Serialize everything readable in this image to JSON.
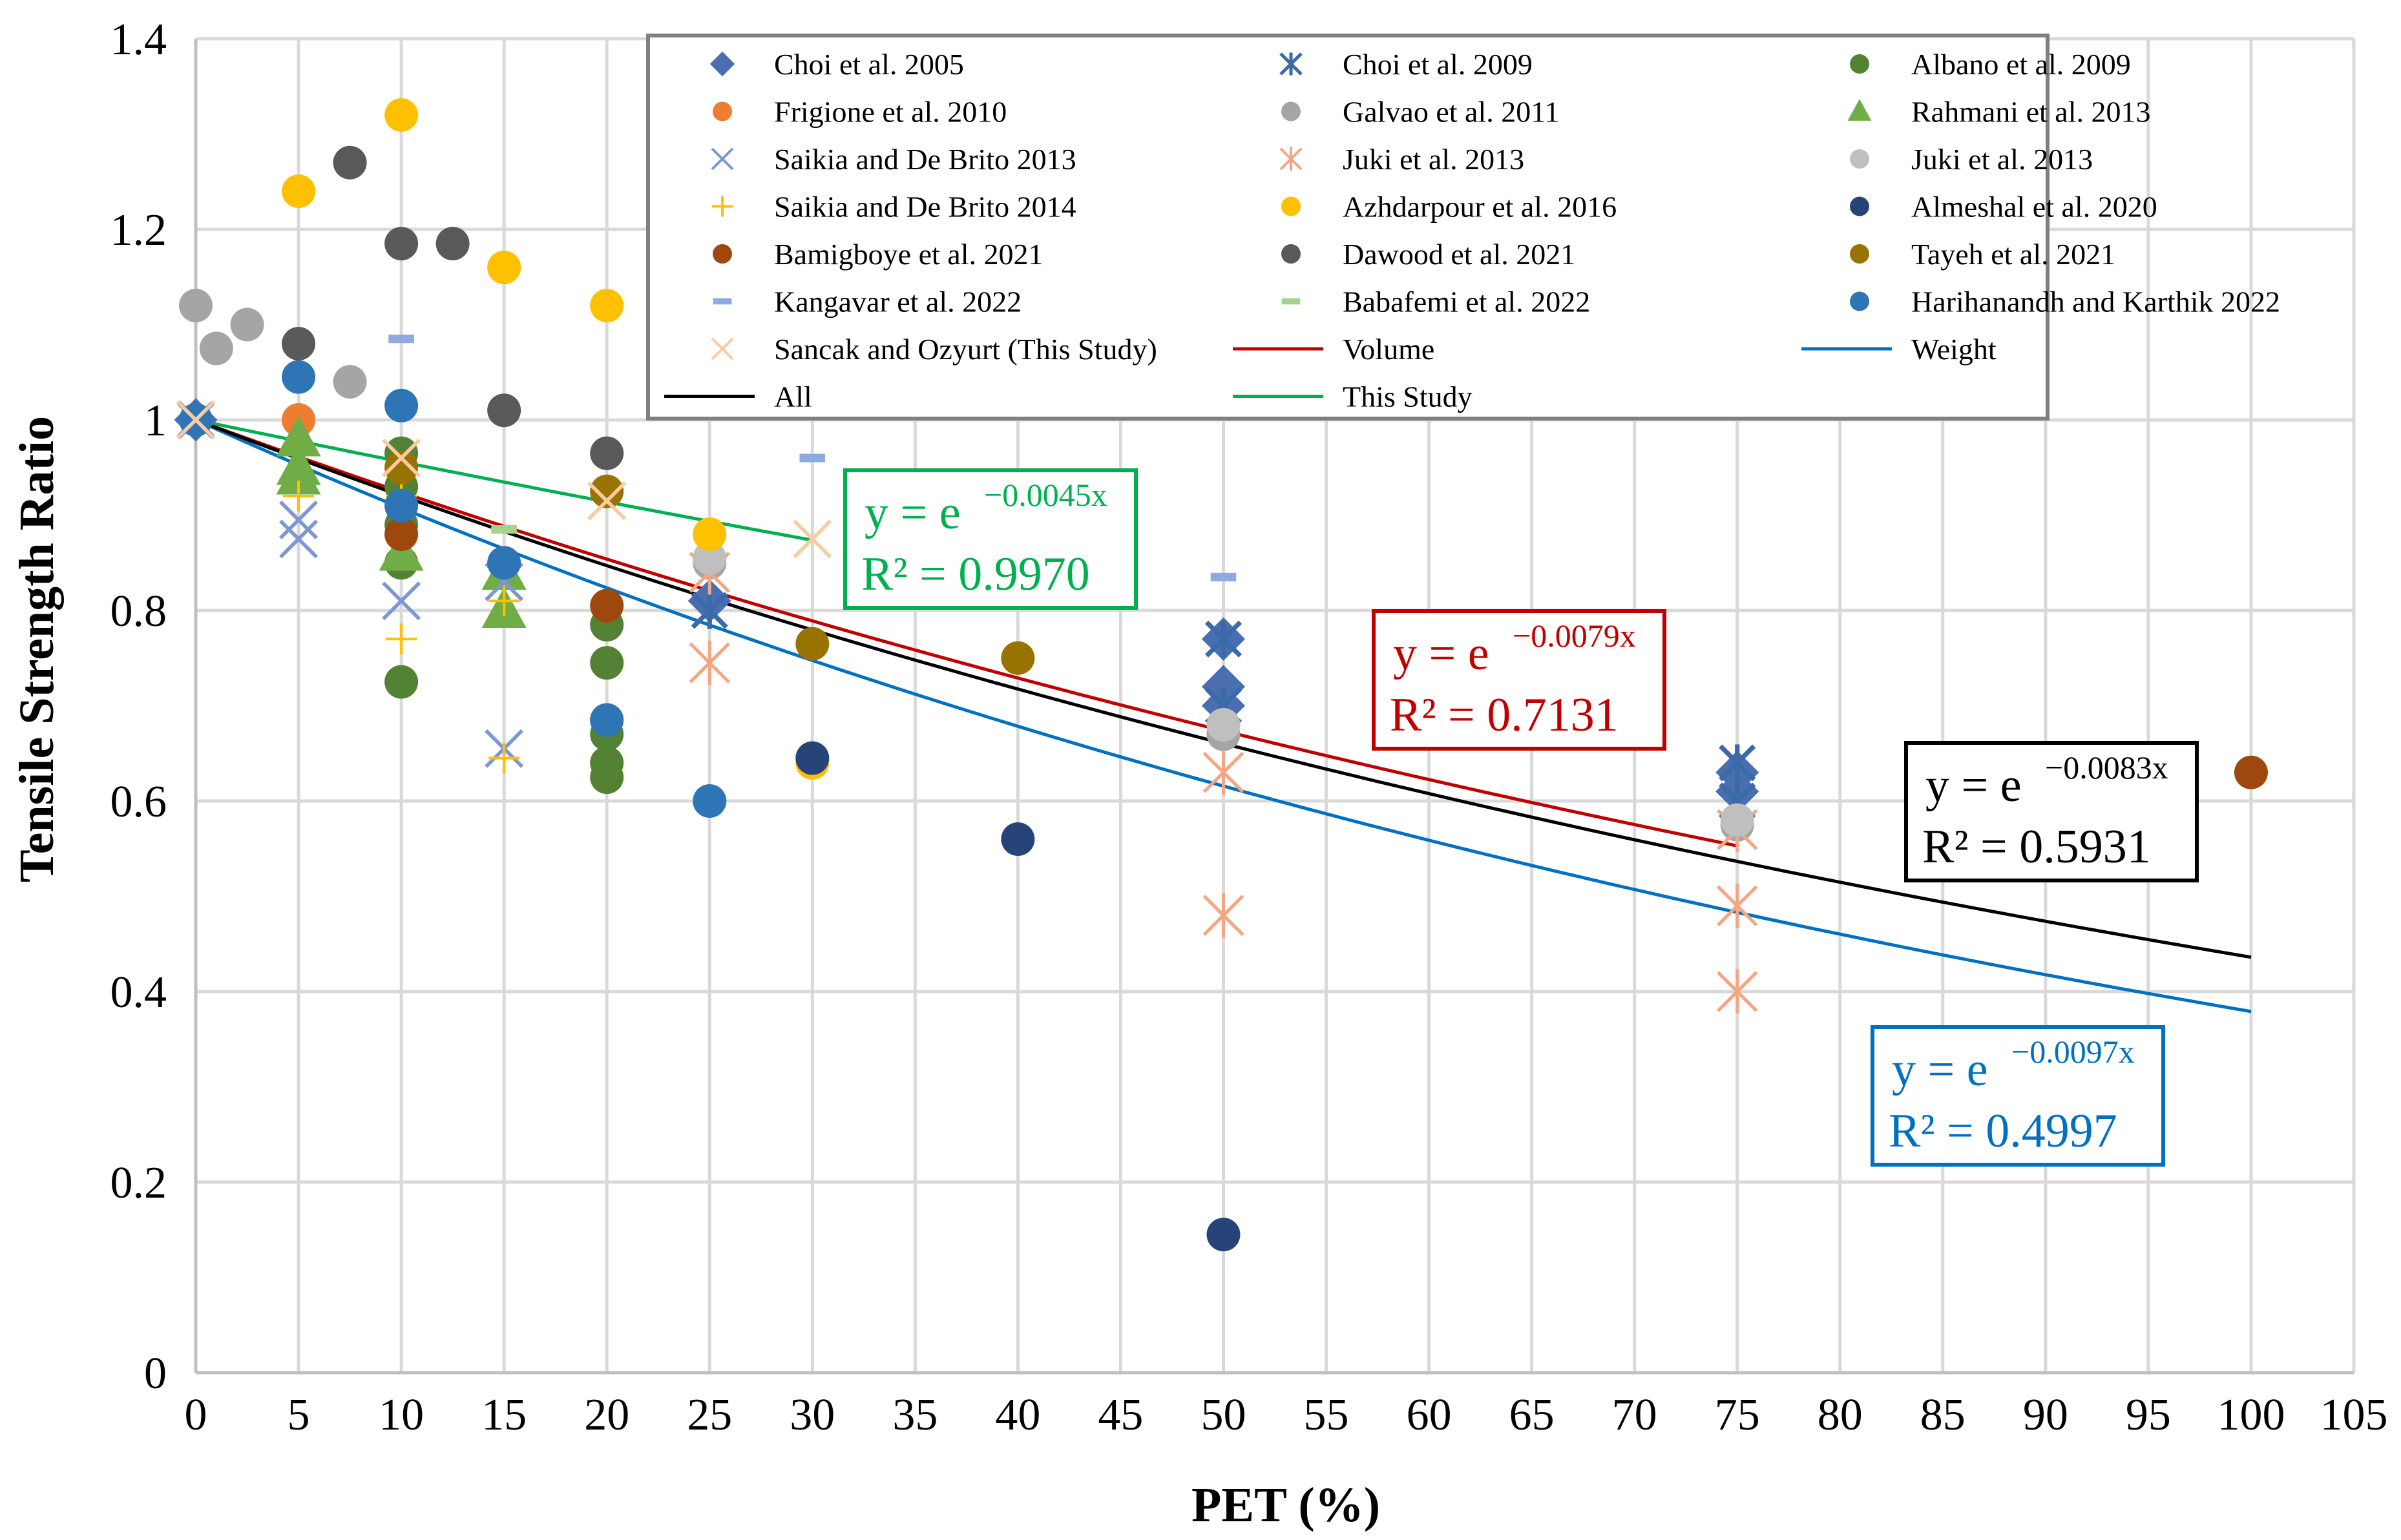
{
  "chart_data": {
    "type": "scatter",
    "title": "",
    "xlabel": "PET (%)",
    "ylabel": "Tensile Strength Ratio",
    "xlim": [
      0,
      105
    ],
    "ylim": [
      0,
      1.4
    ],
    "xticks": [
      "0",
      "5",
      "10",
      "15",
      "20",
      "25",
      "30",
      "35",
      "40",
      "45",
      "50",
      "55",
      "60",
      "65",
      "70",
      "75",
      "80",
      "85",
      "90",
      "95",
      "100",
      "105"
    ],
    "yticks": [
      "0",
      "0.2",
      "0.4",
      "0.6",
      "0.8",
      "1",
      "1.2",
      "1.4"
    ],
    "grid": true,
    "legend_position": "top-right",
    "series": [
      {
        "name": "Choi et al. 2005",
        "marker": "diamond",
        "color": "#4a6fb0",
        "points": [
          [
            0,
            1
          ],
          [
            25,
            0.81
          ],
          [
            50,
            0.77
          ],
          [
            50,
            0.72
          ],
          [
            50,
            0.7
          ],
          [
            75,
            0.63
          ],
          [
            75,
            0.61
          ]
        ]
      },
      {
        "name": "Choi et al. 2009",
        "marker": "star",
        "color": "#3a6aa8",
        "points": [
          [
            0,
            1
          ],
          [
            25,
            0.8
          ],
          [
            50,
            0.77
          ],
          [
            50,
            0.7
          ],
          [
            75,
            0.64
          ],
          [
            75,
            0.6
          ]
        ]
      },
      {
        "name": "Albano et al. 2009",
        "marker": "circle",
        "color": "#548235",
        "points": [
          [
            10,
            0.965
          ],
          [
            10,
            0.93
          ],
          [
            10,
            0.89
          ],
          [
            10,
            0.85
          ],
          [
            10,
            0.725
          ],
          [
            20,
            0.785
          ],
          [
            20,
            0.745
          ],
          [
            20,
            0.685
          ],
          [
            20,
            0.67
          ],
          [
            20,
            0.64
          ],
          [
            20,
            0.625
          ]
        ]
      },
      {
        "name": "Frigione et al. 2010",
        "marker": "circle",
        "color": "#ed7d31",
        "points": [
          [
            0,
            1
          ],
          [
            5,
            1.0
          ]
        ]
      },
      {
        "name": "Galvao et al. 2011",
        "marker": "circle",
        "color": "#a5a5a5",
        "points": [
          [
            0,
            1.12
          ],
          [
            1,
            1.075
          ],
          [
            2.5,
            1.1
          ],
          [
            7.5,
            1.04
          ],
          [
            25,
            0.85
          ],
          [
            50,
            0.67
          ],
          [
            75,
            0.575
          ]
        ]
      },
      {
        "name": "Rahmani et al. 2013",
        "marker": "triangle",
        "color": "#70ad47",
        "points": [
          [
            5,
            0.98
          ],
          [
            5,
            0.95
          ],
          [
            5,
            0.94
          ],
          [
            10,
            0.86
          ],
          [
            15,
            0.8
          ],
          [
            15,
            0.84
          ]
        ]
      },
      {
        "name": "Saikia and De Brito 2013",
        "marker": "x",
        "color": "#7f96d4",
        "points": [
          [
            0,
            1
          ],
          [
            5,
            0.875
          ],
          [
            5,
            0.895
          ],
          [
            10,
            0.81
          ],
          [
            15,
            0.83
          ],
          [
            15,
            0.655
          ]
        ]
      },
      {
        "name": "Juki et al. 2013",
        "marker": "asterisk",
        "color": "#f4a582",
        "points": [
          [
            25,
            0.745
          ],
          [
            25,
            0.84
          ],
          [
            50,
            0.63
          ],
          [
            50,
            0.48
          ],
          [
            75,
            0.49
          ],
          [
            75,
            0.4
          ],
          [
            75,
            0.57
          ]
        ]
      },
      {
        "name": "Juki et al. 2013",
        "marker": "circle",
        "color": "#bfbfbf",
        "points": [
          [
            25,
            0.855
          ],
          [
            50,
            0.68
          ],
          [
            75,
            0.58
          ]
        ]
      },
      {
        "name": "Saikia and De Brito 2014",
        "marker": "plus",
        "color": "#ffc000",
        "points": [
          [
            0,
            1
          ],
          [
            5,
            0.92
          ],
          [
            10,
            0.77
          ],
          [
            10,
            0.92
          ],
          [
            15,
            0.645
          ],
          [
            15,
            0.81
          ]
        ]
      },
      {
        "name": "Azhdarpour et al. 2016",
        "marker": "circle",
        "color": "#ffc000",
        "points": [
          [
            5,
            1.24
          ],
          [
            10,
            1.32
          ],
          [
            15,
            1.16
          ],
          [
            20,
            1.12
          ],
          [
            25,
            0.88
          ],
          [
            30,
            0.64
          ]
        ]
      },
      {
        "name": "Almeshal et al. 2020",
        "marker": "circle",
        "color": "#264478",
        "points": [
          [
            30,
            0.645
          ],
          [
            40,
            0.56
          ],
          [
            50,
            0.145
          ]
        ]
      },
      {
        "name": "Bamigboye et al. 2021",
        "marker": "circle",
        "color": "#9e480e",
        "points": [
          [
            10,
            0.88
          ],
          [
            20,
            0.805
          ],
          [
            100,
            0.63
          ]
        ]
      },
      {
        "name": "Dawood et al. 2021",
        "marker": "circle",
        "color": "#595959",
        "points": [
          [
            5,
            1.08
          ],
          [
            7.5,
            1.27
          ],
          [
            10,
            1.185
          ],
          [
            12.5,
            1.185
          ],
          [
            15,
            1.01
          ],
          [
            20,
            0.965
          ]
        ]
      },
      {
        "name": "Tayeh et al. 2021",
        "marker": "circle",
        "color": "#997300",
        "points": [
          [
            10,
            0.95
          ],
          [
            20,
            0.925
          ],
          [
            30,
            0.765
          ],
          [
            40,
            0.75
          ]
        ]
      },
      {
        "name": "Kangavar et al. 2022",
        "marker": "dash",
        "color": "#8faadc",
        "points": [
          [
            10,
            1.085
          ],
          [
            30,
            0.96
          ],
          [
            50,
            0.835
          ]
        ]
      },
      {
        "name": "Babafemi et al. 2022",
        "marker": "dash",
        "color": "#a9d18e",
        "points": [
          [
            15,
            0.885
          ]
        ]
      },
      {
        "name": "Harihanandh and Karthik 2022",
        "marker": "circle",
        "color": "#2e75b6",
        "points": [
          [
            0,
            1
          ],
          [
            5,
            1.045
          ],
          [
            10,
            1.015
          ],
          [
            10,
            0.91
          ],
          [
            15,
            0.85
          ],
          [
            20,
            0.685
          ],
          [
            25,
            0.6
          ]
        ]
      },
      {
        "name": "Sancak and Ozyurt (This Study)",
        "marker": "x",
        "color": "#f8cba0",
        "points": [
          [
            0,
            1
          ],
          [
            10,
            0.96
          ],
          [
            20,
            0.915
          ],
          [
            30,
            0.875
          ]
        ]
      }
    ],
    "trendlines": [
      {
        "name": "Volume",
        "type": "exponential",
        "k": -0.0079,
        "color": "#c00000",
        "x_range": [
          0,
          75
        ],
        "equation_base": "y = e",
        "equation_exp": "−0.0079x",
        "r2_label": "R² = 0.7131"
      },
      {
        "name": "Weight",
        "type": "exponential",
        "k": -0.0097,
        "color": "#0070c0",
        "x_range": [
          0,
          100
        ],
        "equation_base": "y = e",
        "equation_exp": "−0.0097x",
        "r2_label": "R² = 0.4997"
      },
      {
        "name": "All",
        "type": "exponential",
        "k": -0.0083,
        "color": "#000000",
        "x_range": [
          0,
          100
        ],
        "equation_base": "y = e",
        "equation_exp": "−0.0083x",
        "r2_label": "R² = 0.5931"
      },
      {
        "name": "This Study",
        "type": "exponential",
        "k": -0.0045,
        "color": "#00b050",
        "x_range": [
          0,
          30
        ],
        "equation_base": "y = e",
        "equation_exp": "−0.0045x",
        "r2_label": "R² = 0.9970"
      }
    ],
    "legend_order": [
      "Choi et al. 2005",
      "Choi et al. 2009",
      "Albano et al. 2009",
      "Frigione et al. 2010",
      "Galvao et al. 2011",
      "Rahmani et al. 2013",
      "Saikia and De Brito 2013",
      "Juki et al. 2013",
      "Juki et al. 2013",
      "Saikia and De Brito 2014",
      "Azhdarpour et al. 2016",
      "Almeshal et al. 2020",
      "Bamigboye et al. 2021",
      "Dawood et al. 2021",
      "Tayeh et al. 2021",
      "Kangavar et al. 2022",
      "Babafemi et al. 2022",
      "Harihanandh and Karthik 2022",
      "Sancak and Ozyurt (This Study)",
      "Volume",
      "Weight",
      "All",
      "This Study"
    ]
  }
}
